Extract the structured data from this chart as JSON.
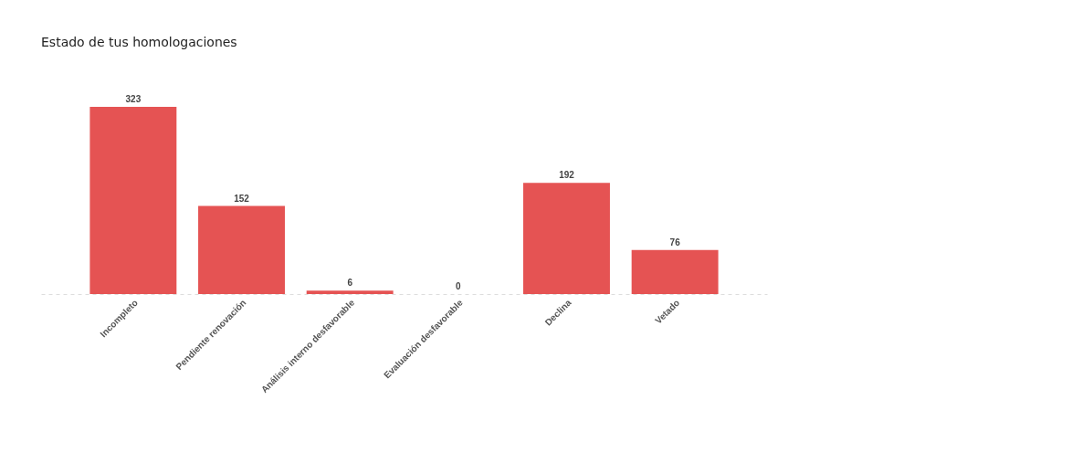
{
  "chart_data": {
    "type": "bar",
    "title": "Estado de tus homologaciones",
    "categories": [
      "Incompleto",
      "Pendiente renovación",
      "Análisis interno desfavorable",
      "Evaluación desfavorable",
      "Declina",
      "Vetado"
    ],
    "values": [
      323,
      152,
      6,
      0,
      192,
      76
    ],
    "color": "#e55353",
    "data_labels": true,
    "tick_labels": "x",
    "grid": false
  }
}
